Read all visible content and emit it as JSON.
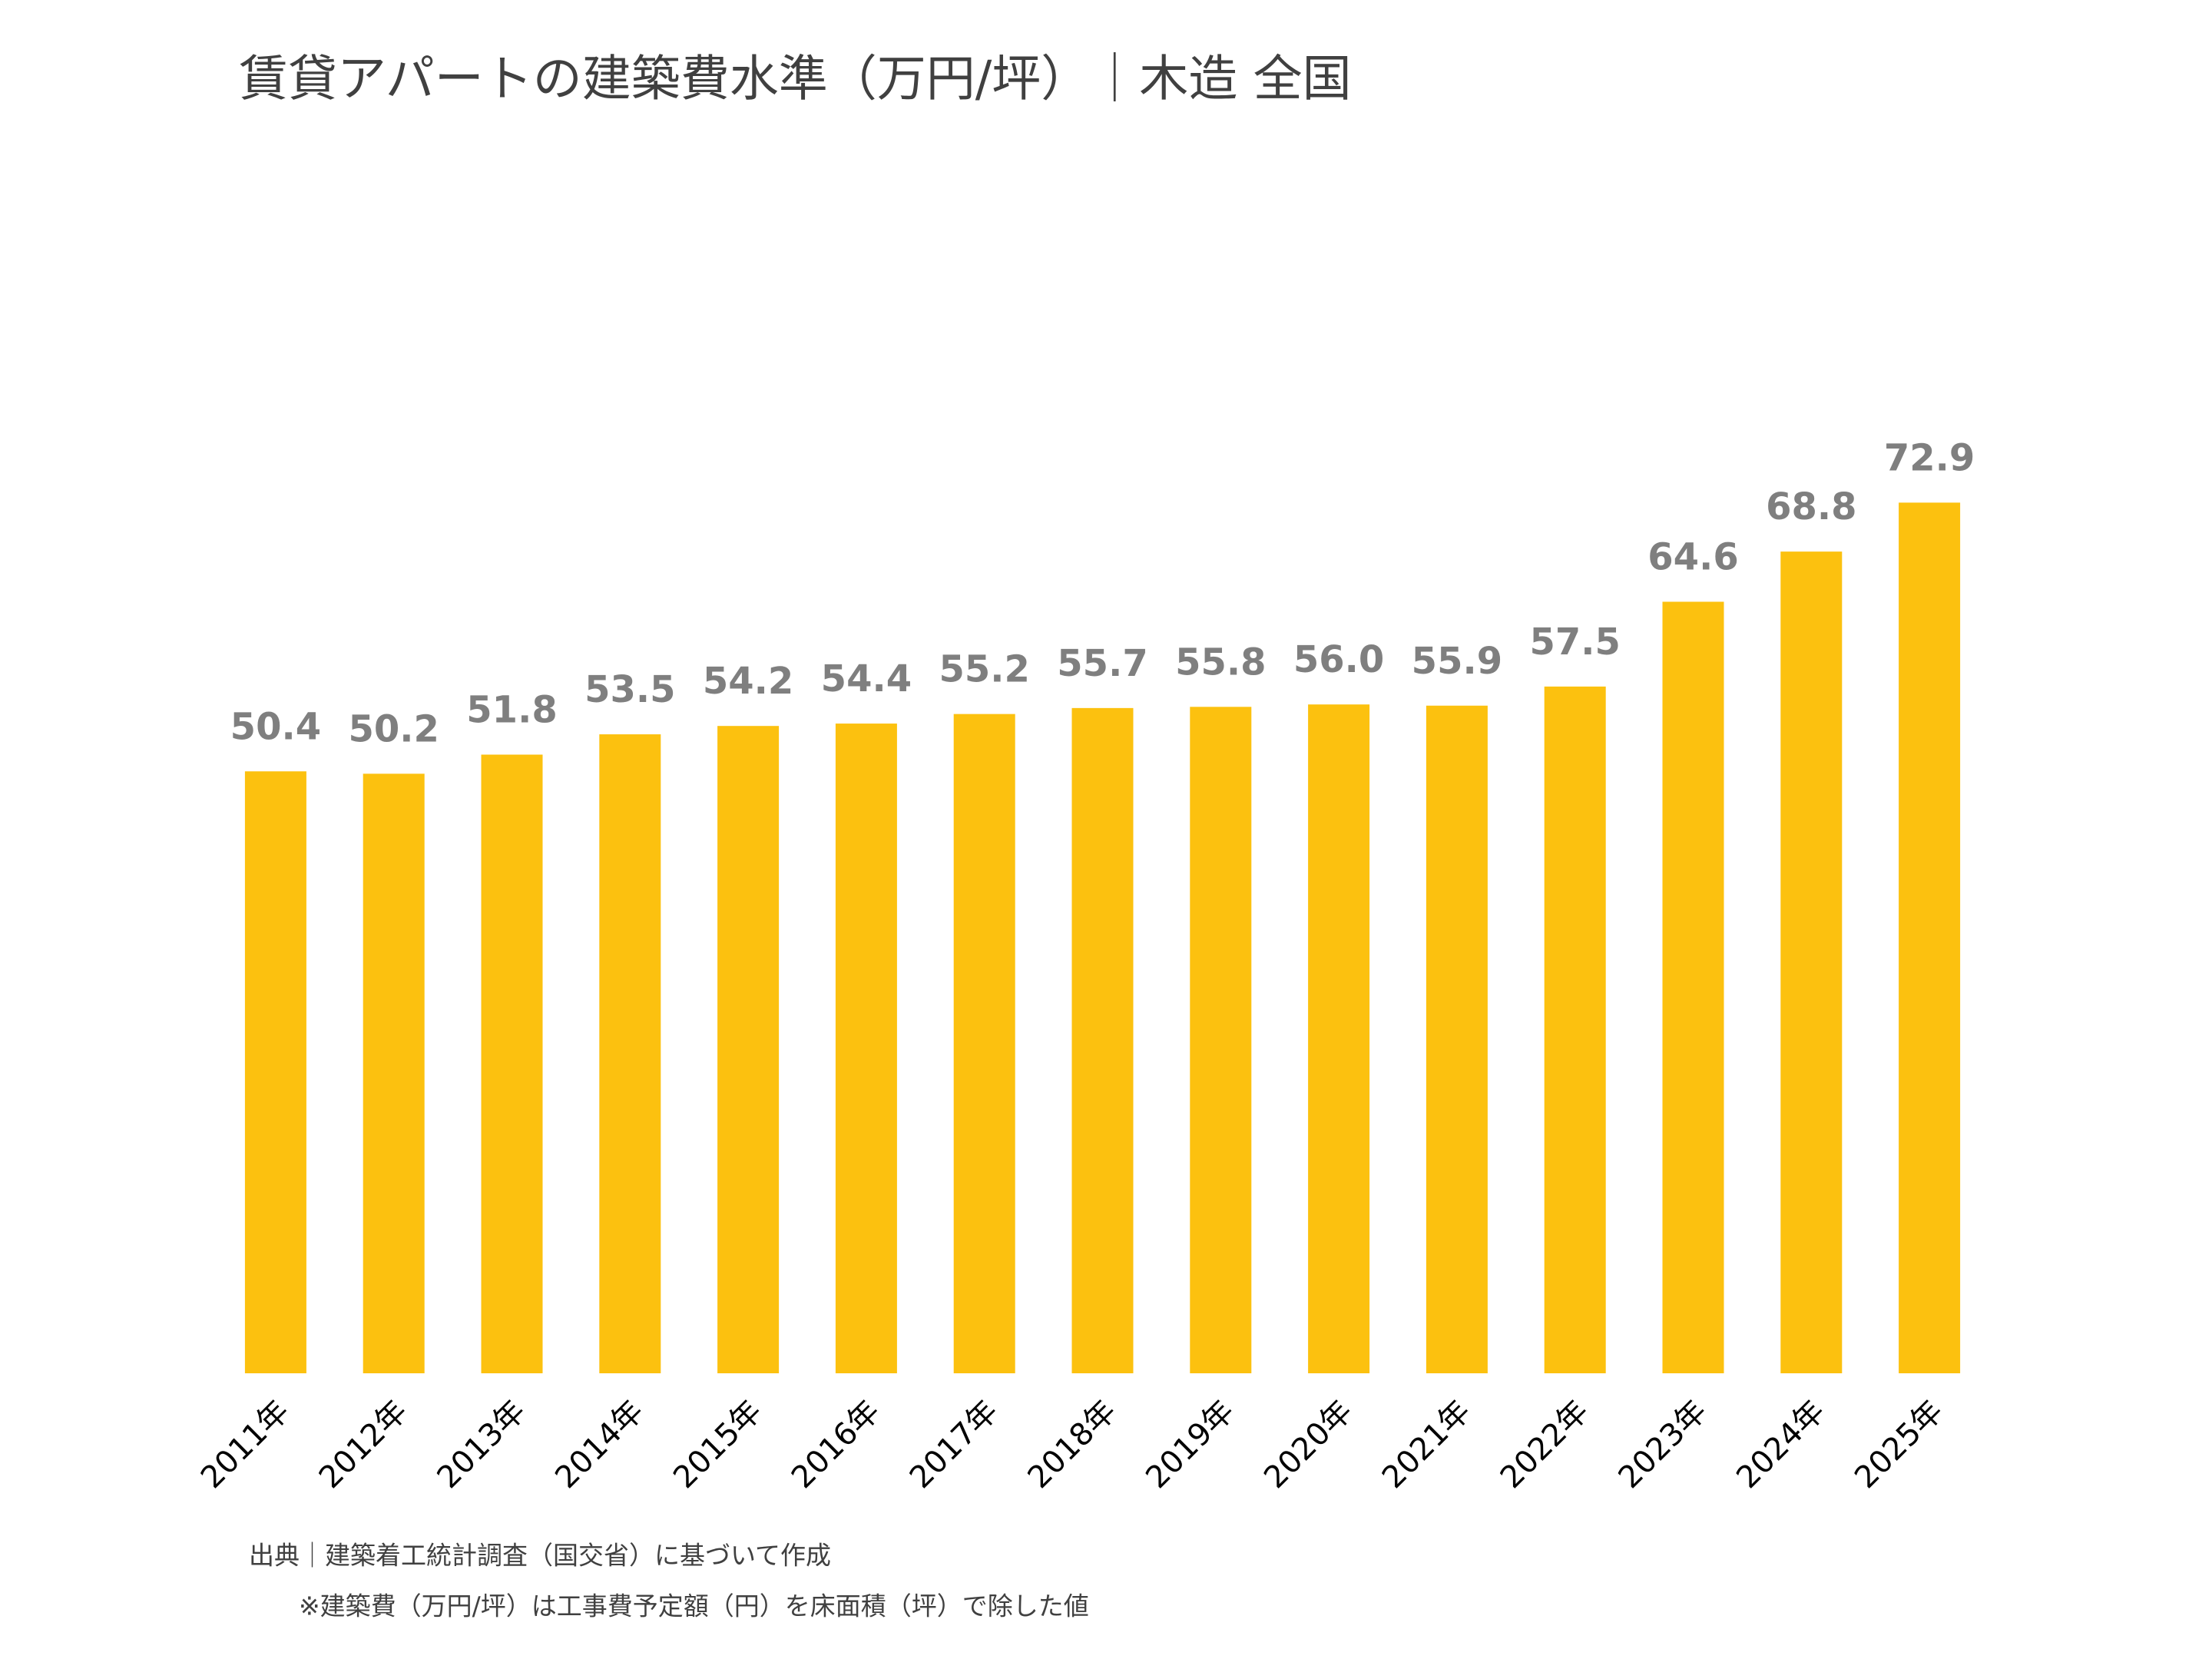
{
  "chart_data": {
    "type": "bar",
    "title": "賃貸アパートの建築費水準（万円/坪）｜木造 全国",
    "categories": [
      "2011年",
      "2012年",
      "2013年",
      "2014年",
      "2015年",
      "2016年",
      "2017年",
      "2018年",
      "2019年",
      "2020年",
      "2021年",
      "2022年",
      "2023年",
      "2024年",
      "2025年"
    ],
    "values": [
      50.4,
      50.2,
      51.8,
      53.5,
      54.2,
      54.4,
      55.2,
      55.7,
      55.8,
      56.0,
      55.9,
      57.5,
      64.6,
      68.8,
      72.9
    ],
    "value_labels": [
      "50.4",
      "50.2",
      "51.8",
      "53.5",
      "54.2",
      "54.4",
      "55.2",
      "55.7",
      "55.8",
      "56.0",
      "55.9",
      "57.5",
      "64.6",
      "68.8",
      "72.9"
    ],
    "color": "#FCC10F",
    "ylim": [
      0,
      80
    ],
    "notes": [
      "出典｜建築着工統計調査（国交省）に基づいて作成",
      "※建築費（万円/坪）は工事費予定額（円）を床面積（坪）で除した値"
    ]
  }
}
